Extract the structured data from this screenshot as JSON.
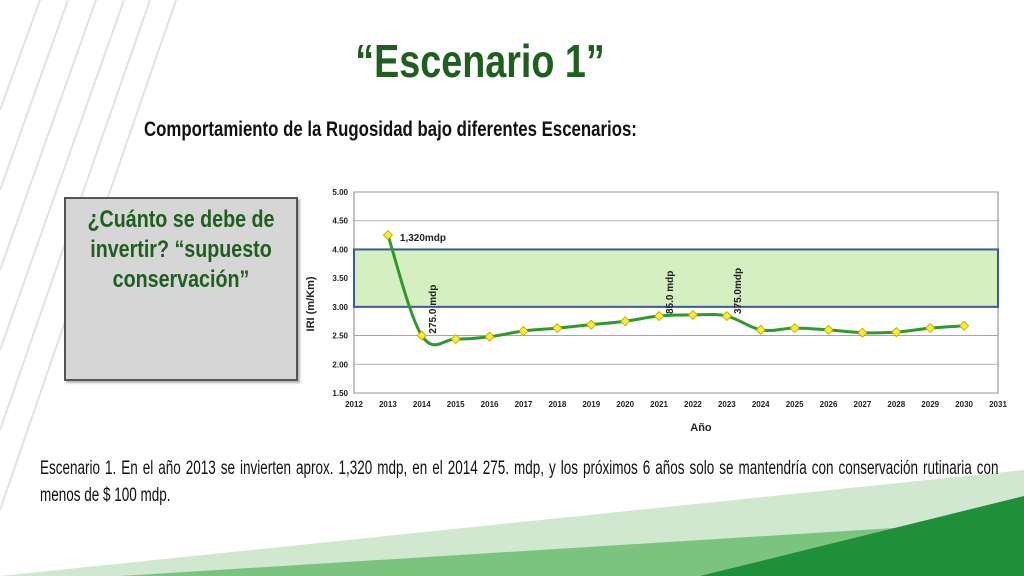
{
  "slide": {
    "title": "“Escenario 1”",
    "subtitle": "Comportamiento de la Rugosidad bajo diferentes Escenarios:",
    "question_lines": [
      "¿Cuánto se debe de",
      "invertir? “supuesto",
      "conservación”"
    ],
    "caption": "Escenario 1.  En el año 2013 se invierten aprox. 1,320 mdp, en el 2014 275. mdp, y los próximos 6 años solo se mantendría con conservación rutinaria con menos de $ 100 mdp."
  },
  "colors": {
    "title_green": "#1e5e1e",
    "line": "#2e9a2e",
    "marker": "#ffee22",
    "band_fill": "#d6efc0",
    "band_border": "#3a5a99",
    "deco_green_dark": "#1f8f3a",
    "deco_green_light": "#7bc47f"
  },
  "chart_data": {
    "type": "line",
    "xlabel": "Año",
    "ylabel": "IRI (m/Km)",
    "xlim": [
      2012,
      2031
    ],
    "ylim": [
      1.5,
      5.0
    ],
    "x_ticks": [
      "2012",
      "2013",
      "2014",
      "2015",
      "2016",
      "2017",
      "2018",
      "2019",
      "2020",
      "2021",
      "2022",
      "2023",
      "2024",
      "2025",
      "2026",
      "2027",
      "2028",
      "2029",
      "2030",
      "2031"
    ],
    "y_ticks": [
      "1.50",
      "2.00",
      "2.50",
      "3.00",
      "3.50",
      "4.00",
      "4.50",
      "5.00"
    ],
    "grid": true,
    "band": [
      3.0,
      4.0
    ],
    "series": [
      {
        "x": [
          2013,
          2014,
          2015,
          2016,
          2017,
          2018,
          2019,
          2020,
          2021,
          2022,
          2023,
          2024,
          2025,
          2026,
          2027,
          2028,
          2029,
          2030
        ],
        "values": [
          4.25,
          2.5,
          2.44,
          2.48,
          2.58,
          2.63,
          2.69,
          2.75,
          2.84,
          2.86,
          2.84,
          2.6,
          2.63,
          2.6,
          2.55,
          2.56,
          2.63,
          2.67
        ]
      }
    ],
    "annotations": [
      {
        "text": "1,320mdp",
        "x": 2013,
        "y": 4.25,
        "rotated": false
      },
      {
        "text": "275.0 mdp",
        "x": 2014,
        "y": 2.5,
        "rotated": true
      },
      {
        "text": "85.0 mdp",
        "x": 2021,
        "y": 2.84,
        "rotated": true
      },
      {
        "text": "375.0mdp",
        "x": 2023,
        "y": 2.84,
        "rotated": true
      }
    ]
  }
}
